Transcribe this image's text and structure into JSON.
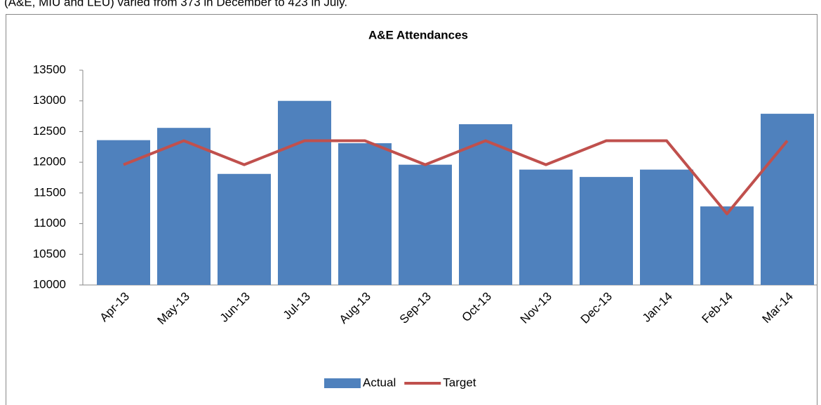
{
  "caption": "(A&E, MIU and LEU) varied from 373 in December to 423 in July.",
  "chart_data": {
    "type": "bar_line",
    "title": "A&E Attendances",
    "categories": [
      "Apr-13",
      "May-13",
      "Jun-13",
      "Jul-13",
      "Aug-13",
      "Sep-13",
      "Oct-13",
      "Nov-13",
      "Dec-13",
      "Jan-14",
      "Feb-14",
      "Mar-14"
    ],
    "series": [
      {
        "name": "Actual",
        "type": "bar",
        "color": "#4f81bd",
        "values": [
          12360,
          12560,
          11810,
          13000,
          12310,
          11960,
          12620,
          11880,
          11760,
          11880,
          11280,
          12790
        ]
      },
      {
        "name": "Target",
        "type": "line",
        "color": "#c0504d",
        "values": [
          11960,
          12350,
          11960,
          12350,
          12350,
          11960,
          12350,
          11960,
          12350,
          12350,
          11160,
          12350
        ]
      }
    ],
    "ylim": [
      10000,
      13500
    ],
    "yticks": [
      10000,
      10500,
      11000,
      11500,
      12000,
      12500,
      13000,
      13500
    ],
    "legend": "bottom"
  }
}
